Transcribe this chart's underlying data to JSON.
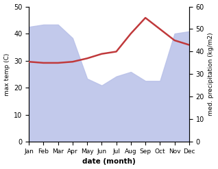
{
  "months": [
    "Jan",
    "Feb",
    "Mar",
    "Apr",
    "May",
    "Jun",
    "Jul",
    "Aug",
    "Sep",
    "Oct",
    "Nov",
    "Dec"
  ],
  "max_temp": [
    35.5,
    35.0,
    35.0,
    35.5,
    37.0,
    39.0,
    40.0,
    48.0,
    55.0,
    50.0,
    45.0,
    43.0
  ],
  "precipitation": [
    51,
    52,
    52,
    46,
    28,
    25,
    29,
    31,
    27,
    27,
    48,
    49
  ],
  "temp_color": "#c0393b",
  "precip_fill_color": "#b8c0e8",
  "ylabel_left": "max temp (C)",
  "ylabel_right": "med. precipitation (kg/m2)",
  "xlabel": "date (month)",
  "ylim_left": [
    0,
    50
  ],
  "ylim_right": [
    0,
    60
  ],
  "yticks_left": [
    0,
    10,
    20,
    30,
    40,
    50
  ],
  "yticks_right": [
    0,
    10,
    20,
    30,
    40,
    50,
    60
  ],
  "temp_lw": 1.8
}
